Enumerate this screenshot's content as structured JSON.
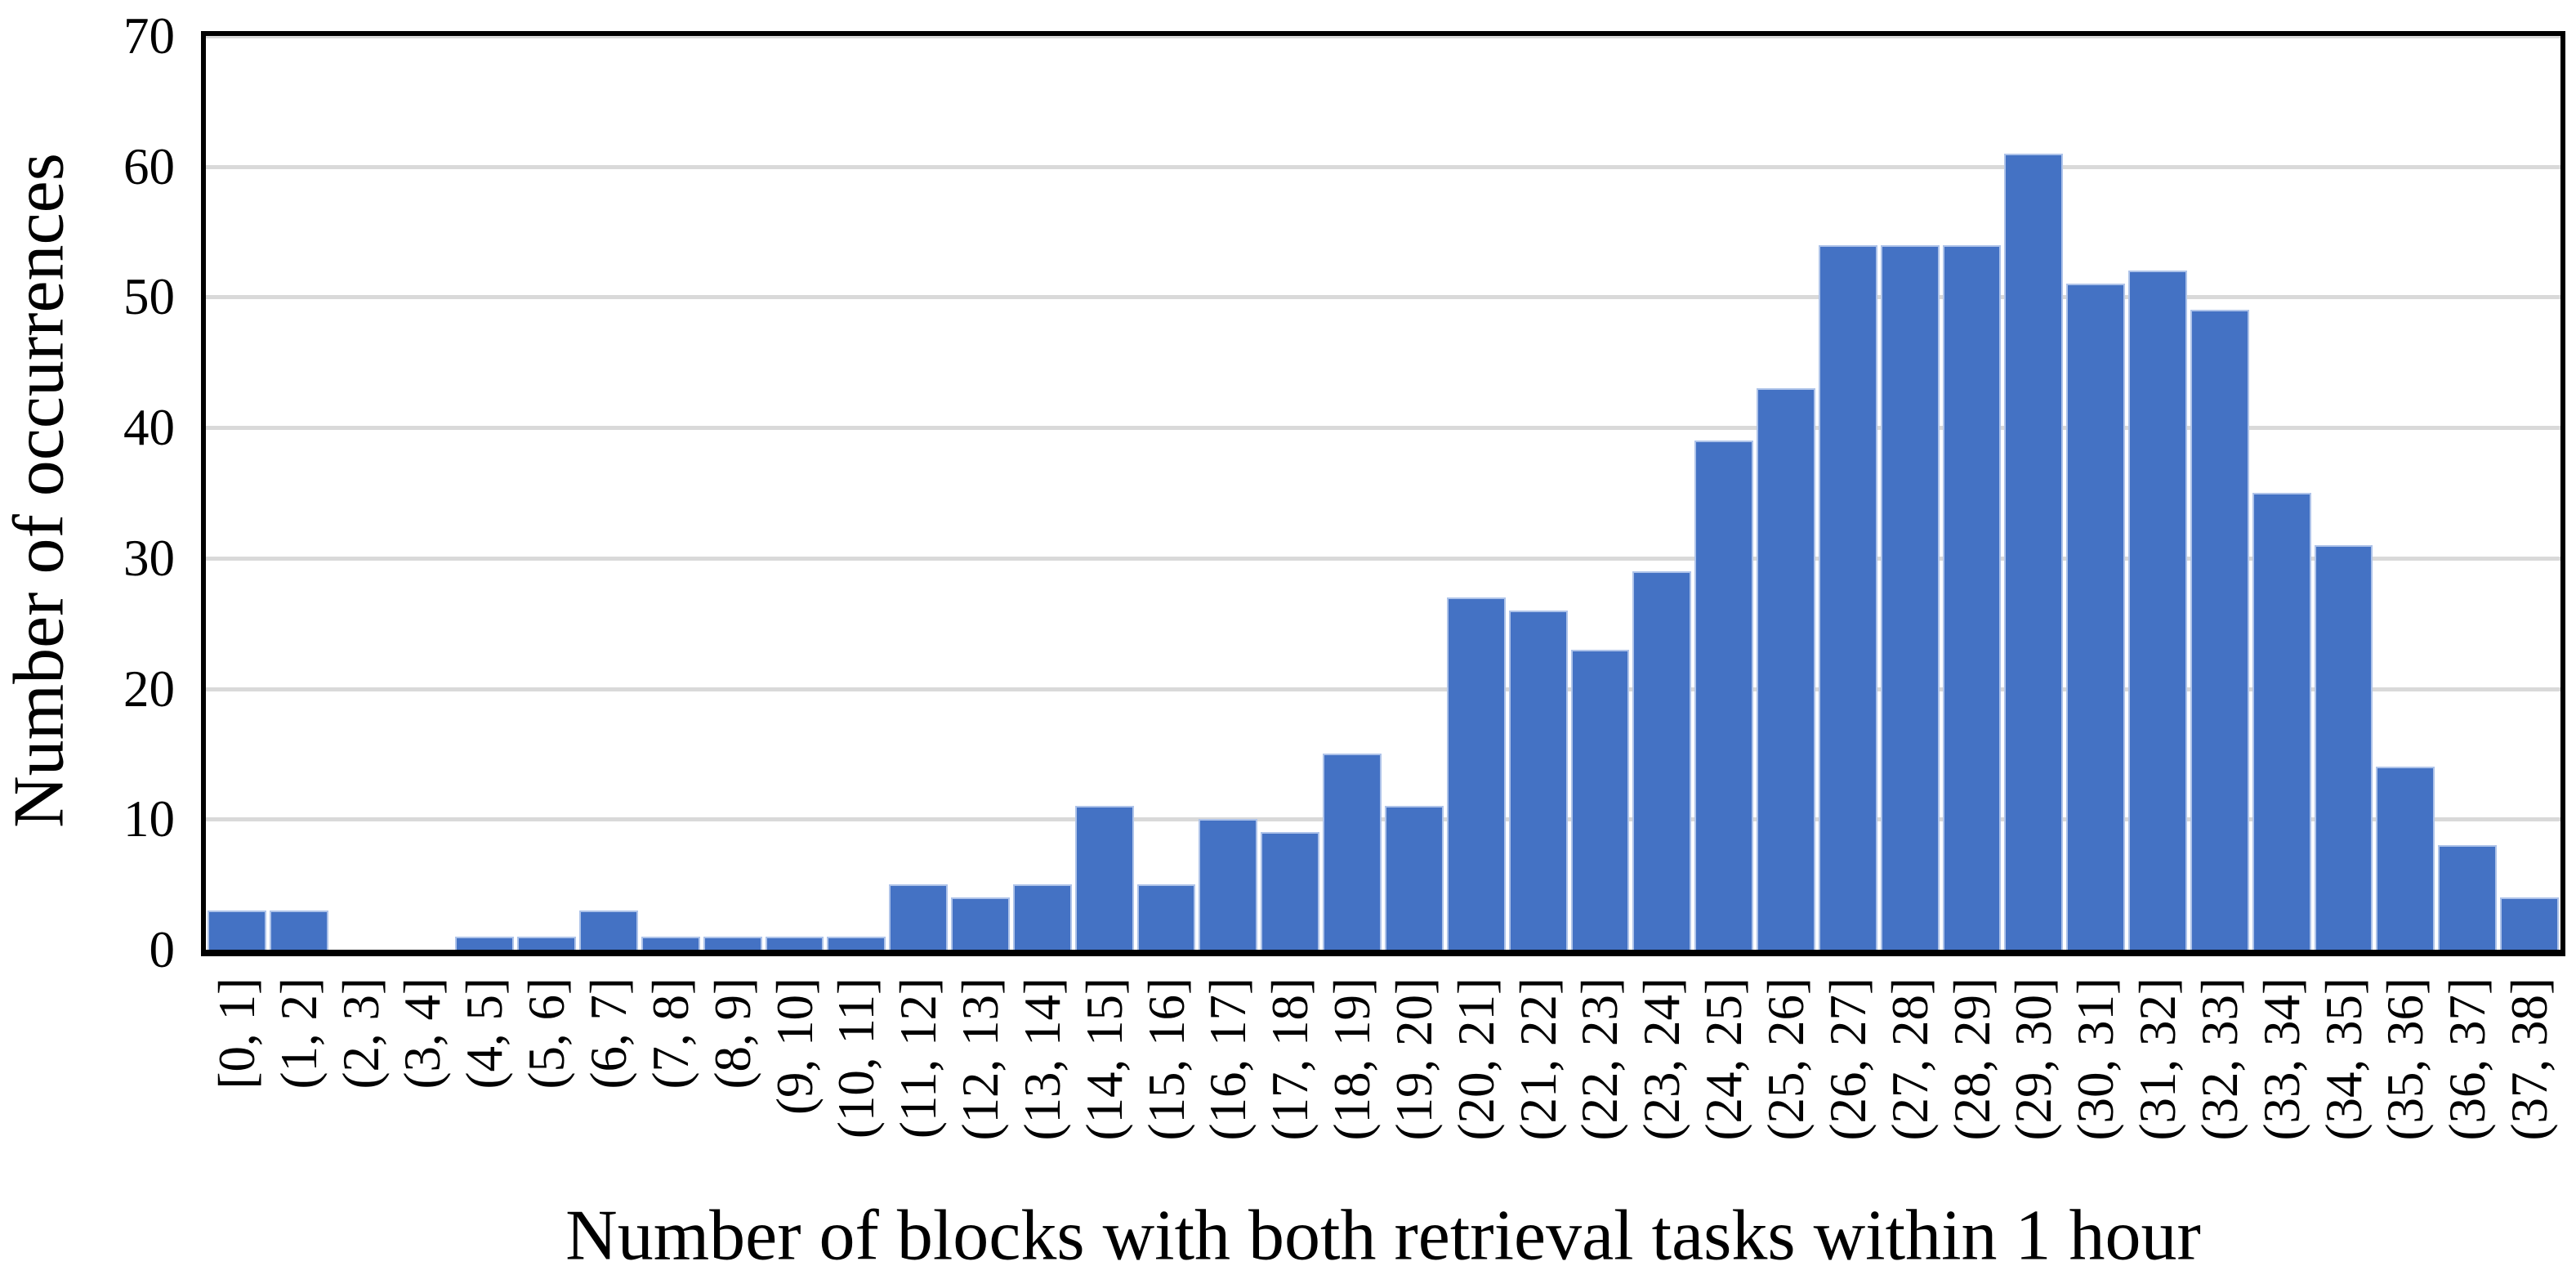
{
  "figure": {
    "background_color": "#ffffff",
    "bar_color": "#4472C4",
    "bar_edge_color": "#AEC3E9",
    "gridline_color": "#D9D9D9",
    "frame_color": "#000000"
  },
  "chart_data": {
    "type": "bar",
    "title": "",
    "xlabel": "Number of blocks with both retrieval tasks within 1 hour",
    "ylabel": "Number of occurrences",
    "ylim": [
      0,
      70
    ],
    "yticks": [
      0,
      10,
      20,
      30,
      40,
      50,
      60,
      70
    ],
    "grid": true,
    "legend": false,
    "categories": [
      "[0, 1]",
      "(1, 2]",
      "(2, 3]",
      "(3, 4]",
      "(4, 5]",
      "(5, 6]",
      "(6, 7]",
      "(7, 8]",
      "(8, 9]",
      "(9, 10]",
      "(10, 11]",
      "(11, 12]",
      "(12, 13]",
      "(13, 14]",
      "(14, 15]",
      "(15, 16]",
      "(16, 17]",
      "(17, 18]",
      "(18, 19]",
      "(19, 20]",
      "(20, 21]",
      "(21, 22]",
      "(22, 23]",
      "(23, 24]",
      "(24, 25]",
      "(25, 26]",
      "(26, 27]",
      "(27, 28]",
      "(28, 29]",
      "(29, 30]",
      "(30, 31]",
      "(31, 32]",
      "(32, 33]",
      "(33, 34]",
      "(34, 35]",
      "(35, 36]",
      "(36, 37]",
      "(37, 38]"
    ],
    "values": [
      3,
      3,
      0,
      0,
      1,
      1,
      3,
      1,
      1,
      1,
      1,
      5,
      4,
      5,
      11,
      5,
      10,
      9,
      15,
      11,
      27,
      26,
      23,
      29,
      39,
      43,
      54,
      54,
      54,
      61,
      51,
      52,
      49,
      35,
      31,
      14,
      8,
      4
    ]
  }
}
